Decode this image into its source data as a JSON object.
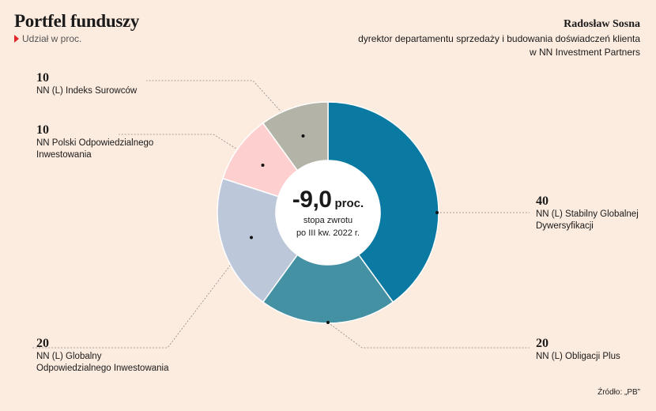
{
  "header": {
    "title": "Portfel funduszy",
    "subtitle": "Udział w proc."
  },
  "author": {
    "name": "Radosław Sosna",
    "role_line1": "dyrektor departamentu sprzedaży i budowania doświadczeń klienta",
    "role_line2": "w NN Investment Partners"
  },
  "source": "Źródło: „PB”",
  "center": {
    "value": "-9,0",
    "unit": "proc.",
    "desc_line1": "stopa zwrotu",
    "desc_line2": "po III kw. 2022 r."
  },
  "colors": {
    "background": "#fcebdf",
    "accent": "#e0252b"
  },
  "chart_data": {
    "type": "pie",
    "donut": true,
    "title": "Portfel funduszy",
    "subtitle": "Udział w proc.",
    "categories": [
      "NN (L) Stabilny Globalnej Dywersyfikacji",
      "NN (L) Obligacji Plus",
      "NN (L) Globalny Odpowiedzialnego Inwestowania",
      "NN Polski Odpowiedzialnego Inwestowania",
      "NN (L) Indeks Surowców"
    ],
    "values": [
      40,
      20,
      20,
      10,
      10
    ],
    "colors": [
      "#0a7aa2",
      "#4591a4",
      "#bcc7d9",
      "#fecfcf",
      "#b4b3a8"
    ],
    "labels": [
      {
        "value": "40",
        "line1": "NN (L) Stabilny Globalnej",
        "line2": "Dywersyfikacji"
      },
      {
        "value": "20",
        "line1": "NN (L) Obligacji Plus",
        "line2": ""
      },
      {
        "value": "20",
        "line1": "NN (L) Globalny",
        "line2": "Odpowiedzialnego Inwestowania"
      },
      {
        "value": "10",
        "line1": "NN Polski Odpowiedzialnego",
        "line2": "Inwestowania"
      },
      {
        "value": "10",
        "line1": "NN (L) Indeks Surowców",
        "line2": ""
      }
    ]
  }
}
